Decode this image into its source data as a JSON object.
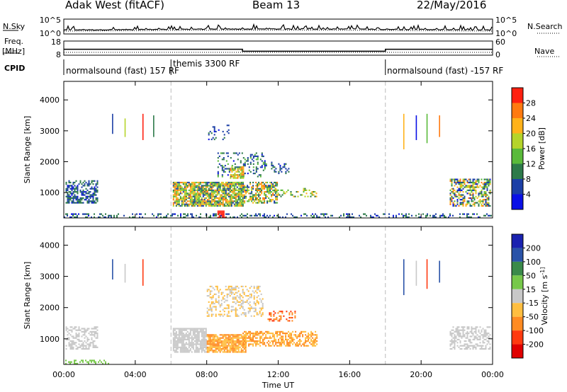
{
  "header": {
    "station": "Adak West (fitACF)",
    "beam": "Beam 13",
    "date": "22/May/2016"
  },
  "side_labels": {
    "nsky": "N.Sky",
    "nsearch": "N.Search",
    "freq_line1": "Freq.",
    "freq_line2": "[MHz]",
    "nave": "Nave",
    "cpid": "CPID"
  },
  "colors": {
    "power": [
      "#0a10e6",
      "#1c3fa6",
      "#2d7a4a",
      "#5aba3a",
      "#b5d42a",
      "#ffb21a",
      "#ff7a10",
      "#ff2010"
    ],
    "velocity": [
      "#1a22b0",
      "#2a53a8",
      "#3a8a4a",
      "#77c84a",
      "#c8c8c8",
      "#ffbe40",
      "#ff8b22",
      "#ff3a10",
      "#e00000"
    ]
  },
  "chart_data": [
    {
      "type": "line",
      "name": "noise-panel",
      "yticks_left": [
        "10^5",
        "10^0"
      ],
      "yticks_right": [
        "10^5",
        "10^0"
      ],
      "series": [
        {
          "name": "N.Sky",
          "style": "solid"
        },
        {
          "name": "N.Search",
          "style": "dotted"
        }
      ]
    },
    {
      "type": "line",
      "name": "frequency-panel",
      "yticks_left": [
        "18",
        "8"
      ],
      "yticks_right": [
        "60",
        "0"
      ],
      "series": [
        {
          "name": "Freq.",
          "style": "solid",
          "x": [
            "00:00",
            "10:00",
            "10:00",
            "18:00",
            "18:00",
            "24:00"
          ],
          "y": [
            12.2,
            12.2,
            10.8,
            10.8,
            12.2,
            12.2
          ]
        },
        {
          "name": "Nave",
          "style": "dotted",
          "x": [
            "00:00",
            "24:00"
          ],
          "y": [
            8,
            8
          ]
        }
      ]
    },
    {
      "type": "table",
      "name": "cpid-panel",
      "segments": [
        {
          "start_hour": 0,
          "end_hour": 6,
          "label": "normalsound (fast) 157 RF"
        },
        {
          "start_hour": 6,
          "end_hour": 18,
          "label": "themis 3300 RF"
        },
        {
          "start_hour": 18,
          "end_hour": 24,
          "label": "normalsound (fast) -157 RF"
        }
      ]
    },
    {
      "type": "heatmap",
      "name": "power",
      "ylabel": "Slant Range [km]",
      "ylim": [
        180,
        4600
      ],
      "yticks": [
        1000,
        2000,
        3000,
        4000
      ],
      "xlim": [
        0,
        24
      ],
      "colorbar_label": "Power [dB]",
      "colorbar_ticks": [
        4,
        8,
        12,
        16,
        20,
        24,
        28
      ],
      "colorbar_range": [
        0,
        32
      ],
      "scatter_regions": [
        {
          "t": [
            0.1,
            1.9
          ],
          "r": [
            650,
            1400
          ],
          "density": 0.55,
          "vals": [
            3,
            12
          ]
        },
        {
          "t": [
            0.0,
            24.0
          ],
          "r": [
            200,
            330
          ],
          "density": 0.3,
          "vals": [
            3,
            12
          ]
        },
        {
          "t": [
            6.1,
            10.1
          ],
          "r": [
            550,
            1350
          ],
          "density": 0.85,
          "vals": [
            5,
            26
          ]
        },
        {
          "t": [
            10.0,
            12.0
          ],
          "r": [
            650,
            1350
          ],
          "density": 0.6,
          "vals": [
            5,
            28
          ]
        },
        {
          "t": [
            11.8,
            14.2
          ],
          "r": [
            850,
            1150
          ],
          "density": 0.3,
          "vals": [
            8,
            24
          ]
        },
        {
          "t": [
            8.6,
            11.4
          ],
          "r": [
            1500,
            2300
          ],
          "density": 0.25,
          "vals": [
            3,
            14
          ]
        },
        {
          "t": [
            9.3,
            10.1
          ],
          "r": [
            1450,
            1850
          ],
          "density": 0.6,
          "vals": [
            14,
            26
          ]
        },
        {
          "t": [
            8.0,
            9.3
          ],
          "r": [
            2700,
            3200
          ],
          "density": 0.12,
          "vals": [
            3,
            10
          ]
        },
        {
          "t": [
            11.6,
            12.6
          ],
          "r": [
            1550,
            2000
          ],
          "density": 0.3,
          "vals": [
            3,
            10
          ]
        },
        {
          "t": [
            21.6,
            23.9
          ],
          "r": [
            550,
            1450
          ],
          "density": 0.55,
          "vals": [
            3,
            26
          ]
        },
        {
          "t": [
            8.6,
            9.1
          ],
          "r": [
            180,
            420
          ],
          "density": 0.8,
          "vals": [
            28,
            32
          ]
        }
      ],
      "streaks": [
        {
          "t": 2.7,
          "r": [
            2900,
            3550
          ]
        },
        {
          "t": 3.4,
          "r": [
            2800,
            3400
          ]
        },
        {
          "t": 4.4,
          "r": [
            2700,
            3550
          ]
        },
        {
          "t": 5.0,
          "r": [
            2800,
            3500
          ]
        },
        {
          "t": 19.0,
          "r": [
            2400,
            3550
          ]
        },
        {
          "t": 19.7,
          "r": [
            2700,
            3500
          ]
        },
        {
          "t": 20.3,
          "r": [
            2600,
            3550
          ]
        },
        {
          "t": 21.0,
          "r": [
            2800,
            3500
          ]
        }
      ]
    },
    {
      "type": "heatmap",
      "name": "velocity",
      "ylabel": "Slant Range [km]",
      "ylim": [
        180,
        4600
      ],
      "yticks": [
        1000,
        2000,
        3000,
        4000
      ],
      "xlim": [
        0,
        24
      ],
      "xticks": [
        "00:00",
        "04:00",
        "08:00",
        "12:00",
        "16:00",
        "20:00",
        "00:00"
      ],
      "xlabel": "Time UT",
      "colorbar_label": "Velocity [m s^-1]",
      "colorbar_ticks": [
        200,
        100,
        50,
        15,
        -15,
        -50,
        -100,
        -200
      ],
      "scatter_regions": [
        {
          "t": [
            0.1,
            1.9
          ],
          "r": [
            650,
            1400
          ],
          "density": 0.45,
          "vals": [
            4,
            4
          ]
        },
        {
          "t": [
            0.0,
            2.5
          ],
          "r": [
            200,
            330
          ],
          "density": 0.35,
          "vals": [
            3,
            3
          ]
        },
        {
          "t": [
            6.1,
            8.0
          ],
          "r": [
            550,
            1350
          ],
          "density": 0.8,
          "vals": [
            4,
            4
          ]
        },
        {
          "t": [
            8.0,
            10.2
          ],
          "r": [
            550,
            1150
          ],
          "density": 0.85,
          "vals": [
            5,
            6
          ]
        },
        {
          "t": [
            10.0,
            14.2
          ],
          "r": [
            750,
            1250
          ],
          "density": 0.6,
          "vals": [
            5,
            6
          ]
        },
        {
          "t": [
            8.0,
            11.2
          ],
          "r": [
            1700,
            2700
          ],
          "density": 0.35,
          "vals": [
            4,
            5
          ]
        },
        {
          "t": [
            11.4,
            13.0
          ],
          "r": [
            1550,
            1900
          ],
          "density": 0.3,
          "vals": [
            6,
            7
          ]
        },
        {
          "t": [
            21.6,
            23.9
          ],
          "r": [
            650,
            1400
          ],
          "density": 0.5,
          "vals": [
            4,
            4
          ]
        }
      ],
      "streaks": [
        {
          "t": 2.7,
          "r": [
            2900,
            3550
          ]
        },
        {
          "t": 3.4,
          "r": [
            2800,
            3400
          ]
        },
        {
          "t": 4.4,
          "r": [
            2700,
            3550
          ]
        },
        {
          "t": 19.0,
          "r": [
            2400,
            3550
          ]
        },
        {
          "t": 19.7,
          "r": [
            2700,
            3500
          ]
        },
        {
          "t": 20.3,
          "r": [
            2600,
            3550
          ]
        },
        {
          "t": 21.0,
          "r": [
            2800,
            3500
          ]
        }
      ]
    }
  ]
}
